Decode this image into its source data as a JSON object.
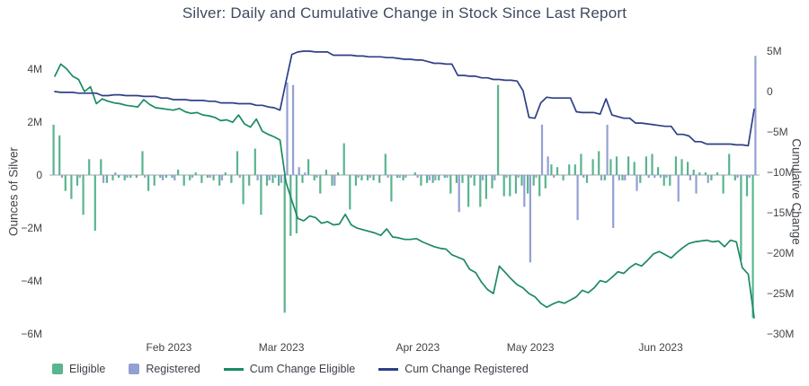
{
  "title": "Silver: Daily and Cumulative Change in Stock Since Last Report",
  "colors": {
    "eligible_bar": "#5ab48e",
    "registered_bar": "#93a0d2",
    "cum_eligible_line": "#1b8a63",
    "cum_registered_line": "#2e4085",
    "title_text": "#3e4a5e",
    "axis_text": "#444444",
    "zero_line": "#b3b9c2"
  },
  "axes": {
    "left": {
      "title": "Ounces of Silver",
      "ticks": [
        "4M",
        "2M",
        "0",
        "−2M",
        "−4M",
        "−6M"
      ],
      "tick_values": [
        4,
        2,
        0,
        -2,
        -4,
        -6
      ]
    },
    "right": {
      "title": "Cumulative Change",
      "ticks": [
        "5M",
        "0",
        "−5M",
        "−10M",
        "−15M",
        "−20M",
        "−25M",
        "−30M"
      ],
      "tick_values": [
        5,
        0,
        -5,
        -10,
        -15,
        -20,
        -25,
        -30
      ]
    },
    "x": {
      "ticks": [
        {
          "label": "Feb 2023",
          "month": "2023-02"
        },
        {
          "label": "Mar 2023",
          "month": "2023-03"
        },
        {
          "label": "Apr 2023",
          "month": "2023-04"
        },
        {
          "label": "May 2023",
          "month": "2023-05"
        },
        {
          "label": "Jun 2023",
          "month": "2023-06"
        }
      ]
    }
  },
  "legend": {
    "items": [
      {
        "label": "Eligible",
        "swatch": "bar",
        "color_key": "eligible_bar"
      },
      {
        "label": "Registered",
        "swatch": "bar",
        "color_key": "registered_bar"
      },
      {
        "label": "Cum Change Eligible",
        "swatch": "line",
        "color_key": "cum_eligible_line"
      },
      {
        "label": "Cum Change Registered",
        "swatch": "line",
        "color_key": "cum_registered_line"
      }
    ]
  },
  "chart_data": {
    "type": "bar+line",
    "title": "Silver: Daily and Cumulative Change in Stock Since Last Report",
    "units": "millions of troy ounces",
    "grid": false,
    "legend_position": "bottom-left",
    "ylim_left": [
      -6.3,
      4.9
    ],
    "ylim_right": [
      -30.6,
      5.9
    ],
    "x": [
      "2023-01-03",
      "2023-01-04",
      "2023-01-05",
      "2023-01-06",
      "2023-01-09",
      "2023-01-10",
      "2023-01-11",
      "2023-01-12",
      "2023-01-13",
      "2023-01-17",
      "2023-01-18",
      "2023-01-19",
      "2023-01-20",
      "2023-01-23",
      "2023-01-24",
      "2023-01-25",
      "2023-01-26",
      "2023-01-27",
      "2023-01-30",
      "2023-01-31",
      "2023-02-01",
      "2023-02-02",
      "2023-02-03",
      "2023-02-06",
      "2023-02-07",
      "2023-02-08",
      "2023-02-09",
      "2023-02-10",
      "2023-02-13",
      "2023-02-14",
      "2023-02-15",
      "2023-02-16",
      "2023-02-17",
      "2023-02-21",
      "2023-02-22",
      "2023-02-23",
      "2023-02-24",
      "2023-02-27",
      "2023-02-28",
      "2023-03-01",
      "2023-03-02",
      "2023-03-03",
      "2023-03-06",
      "2023-03-07",
      "2023-03-08",
      "2023-03-09",
      "2023-03-10",
      "2023-03-13",
      "2023-03-14",
      "2023-03-15",
      "2023-03-16",
      "2023-03-17",
      "2023-03-20",
      "2023-03-21",
      "2023-03-22",
      "2023-03-23",
      "2023-03-24",
      "2023-03-27",
      "2023-03-28",
      "2023-03-29",
      "2023-03-30",
      "2023-03-31",
      "2023-04-03",
      "2023-04-04",
      "2023-04-05",
      "2023-04-06",
      "2023-04-10",
      "2023-04-11",
      "2023-04-12",
      "2023-04-13",
      "2023-04-14",
      "2023-04-17",
      "2023-04-18",
      "2023-04-19",
      "2023-04-20",
      "2023-04-21",
      "2023-04-24",
      "2023-04-25",
      "2023-04-26",
      "2023-04-27",
      "2023-04-28",
      "2023-05-01",
      "2023-05-02",
      "2023-05-03",
      "2023-05-04",
      "2023-05-05",
      "2023-05-08",
      "2023-05-09",
      "2023-05-10",
      "2023-05-11",
      "2023-05-12",
      "2023-05-15",
      "2023-05-16",
      "2023-05-17",
      "2023-05-18",
      "2023-05-19",
      "2023-05-22",
      "2023-05-23",
      "2023-05-24",
      "2023-05-25",
      "2023-05-26",
      "2023-05-30",
      "2023-05-31",
      "2023-06-01",
      "2023-06-02",
      "2023-06-05",
      "2023-06-06",
      "2023-06-07",
      "2023-06-08",
      "2023-06-09",
      "2023-06-12",
      "2023-06-13",
      "2023-06-14",
      "2023-06-15",
      "2023-06-16",
      "2023-06-20",
      "2023-06-21",
      "2023-06-22",
      "2023-06-23"
    ],
    "series": [
      {
        "name": "Eligible",
        "type": "bar",
        "yaxis": "left",
        "color_key": "eligible_bar",
        "values": [
          1.9,
          1.5,
          -0.6,
          -0.9,
          -0.4,
          -1.5,
          0.6,
          -2.1,
          0.6,
          -0.3,
          -0.2,
          -0.1,
          -0.2,
          -0.1,
          -0.1,
          0.9,
          -0.6,
          -0.4,
          -0.1,
          -0.1,
          -0.1,
          0.2,
          -0.4,
          -0.2,
          0.1,
          -0.3,
          -0.1,
          -0.2,
          -0.4,
          0.1,
          -0.3,
          0.9,
          -1.1,
          -0.4,
          1.0,
          -1.5,
          -0.4,
          -0.3,
          -0.4,
          -5.2,
          -2.3,
          -2.2,
          -0.3,
          0.6,
          -0.2,
          -0.7,
          0.2,
          -0.4,
          0.1,
          1.2,
          -1.3,
          -0.4,
          -0.2,
          -0.2,
          -0.2,
          -0.3,
          0.8,
          -1.0,
          -0.1,
          -0.2,
          0.0,
          0.1,
          -0.4,
          -0.3,
          -0.3,
          -0.2,
          -0.1,
          -0.7,
          -0.3,
          -0.3,
          -1.2,
          -0.4,
          -1.2,
          -0.9,
          -0.5,
          3.4,
          -0.8,
          -0.8,
          -0.7,
          -0.4,
          -0.7,
          -0.4,
          -0.8,
          -0.5,
          0.4,
          0.3,
          -0.2,
          0.4,
          0.4,
          0.8,
          -0.3,
          0.6,
          0.9,
          -0.2,
          0.6,
          0.7,
          -0.2,
          0.7,
          0.5,
          -0.3,
          0.7,
          0.8,
          0.3,
          -0.4,
          -0.4,
          0.7,
          0.6,
          0.5,
          0.2,
          0.1,
          0.1,
          -0.2,
          0.1,
          -0.7,
          0.8,
          -0.2,
          -3.2,
          -0.8,
          -5.4
        ]
      },
      {
        "name": "Registered",
        "type": "bar",
        "yaxis": "left",
        "color_key": "registered_bar",
        "values": [
          0.0,
          -0.1,
          0.0,
          0.0,
          -0.1,
          0.0,
          0.0,
          0.0,
          -0.3,
          0.0,
          0.1,
          0.0,
          -0.1,
          0.0,
          0.0,
          -0.1,
          0.0,
          0.0,
          -0.2,
          0.0,
          -0.2,
          0.0,
          0.0,
          -0.1,
          0.0,
          0.0,
          -0.1,
          0.0,
          -0.2,
          0.0,
          0.0,
          -0.1,
          0.0,
          0.0,
          -0.2,
          0.0,
          -0.2,
          -0.1,
          -0.3,
          3.5,
          3.4,
          0.3,
          0.1,
          0.0,
          -0.1,
          0.0,
          0.0,
          -0.4,
          0.0,
          0.0,
          0.0,
          -0.1,
          0.0,
          -0.1,
          0.0,
          0.0,
          -0.1,
          0.0,
          -0.1,
          -0.1,
          0.0,
          -0.1,
          0.0,
          -0.2,
          -0.2,
          0.0,
          -0.1,
          0.0,
          -1.4,
          0.0,
          -0.1,
          0.0,
          -0.2,
          0.0,
          -0.2,
          0.0,
          -0.1,
          0.0,
          -0.1,
          -1.2,
          -3.3,
          -0.1,
          1.9,
          0.7,
          -0.1,
          0.0,
          0.0,
          0.0,
          -1.7,
          -0.1,
          0.0,
          0.0,
          -0.2,
          1.9,
          -2.0,
          -0.2,
          -0.2,
          0.0,
          -0.6,
          0.0,
          -0.1,
          -0.1,
          -0.1,
          -0.1,
          0.0,
          -1.0,
          0.0,
          -0.2,
          -0.7,
          0.0,
          -0.3,
          0.0,
          0.0,
          0.0,
          0.0,
          -0.1,
          0.0,
          -0.1,
          4.5
        ]
      },
      {
        "name": "Cum Change Eligible",
        "type": "line",
        "yaxis": "right",
        "color_key": "cum_eligible_line",
        "values": [
          1.9,
          3.4,
          2.8,
          1.9,
          1.5,
          0.0,
          0.6,
          -1.5,
          -0.9,
          -1.2,
          -1.4,
          -1.5,
          -1.7,
          -1.8,
          -1.9,
          -1.0,
          -1.6,
          -2.0,
          -2.1,
          -2.2,
          -2.3,
          -2.1,
          -2.5,
          -2.7,
          -2.6,
          -2.9,
          -3.0,
          -3.2,
          -3.6,
          -3.5,
          -3.8,
          -2.9,
          -4.0,
          -4.4,
          -3.4,
          -4.9,
          -5.3,
          -5.6,
          -6.0,
          -11.2,
          -13.5,
          -15.7,
          -16.0,
          -15.4,
          -15.6,
          -16.3,
          -16.1,
          -16.5,
          -16.4,
          -15.2,
          -16.5,
          -16.9,
          -17.1,
          -17.3,
          -17.5,
          -17.8,
          -17.0,
          -18.0,
          -18.1,
          -18.3,
          -18.3,
          -18.2,
          -18.6,
          -18.9,
          -19.2,
          -19.4,
          -19.5,
          -20.2,
          -20.5,
          -20.8,
          -22.0,
          -22.4,
          -23.6,
          -24.5,
          -25.0,
          -21.6,
          -22.4,
          -23.2,
          -23.9,
          -24.3,
          -25.0,
          -25.4,
          -26.2,
          -26.7,
          -26.3,
          -26.0,
          -26.2,
          -25.8,
          -25.4,
          -24.6,
          -24.9,
          -24.3,
          -23.4,
          -23.6,
          -23.0,
          -22.3,
          -22.5,
          -21.8,
          -21.3,
          -21.6,
          -20.9,
          -20.1,
          -19.8,
          -20.2,
          -20.6,
          -19.9,
          -19.3,
          -18.8,
          -18.6,
          -18.5,
          -18.4,
          -18.6,
          -18.5,
          -19.2,
          -18.4,
          -18.6,
          -21.8,
          -22.6,
          -28.0
        ]
      },
      {
        "name": "Cum Change Registered",
        "type": "line",
        "yaxis": "right",
        "color_key": "cum_registered_line",
        "values": [
          0.0,
          -0.1,
          -0.1,
          -0.1,
          -0.2,
          -0.2,
          -0.2,
          -0.2,
          -0.5,
          -0.5,
          -0.4,
          -0.4,
          -0.5,
          -0.5,
          -0.5,
          -0.6,
          -0.6,
          -0.6,
          -0.8,
          -0.8,
          -1.0,
          -1.0,
          -1.0,
          -1.1,
          -1.1,
          -1.1,
          -1.2,
          -1.2,
          -1.4,
          -1.4,
          -1.4,
          -1.5,
          -1.5,
          -1.5,
          -1.7,
          -1.7,
          -1.9,
          -2.0,
          -2.3,
          1.2,
          4.6,
          4.9,
          5.0,
          5.0,
          4.9,
          4.9,
          4.9,
          4.5,
          4.5,
          4.5,
          4.5,
          4.4,
          4.4,
          4.3,
          4.3,
          4.3,
          4.2,
          4.2,
          4.1,
          4.0,
          4.0,
          3.9,
          3.9,
          3.7,
          3.5,
          3.5,
          3.4,
          3.4,
          2.0,
          2.0,
          1.9,
          1.9,
          1.7,
          1.7,
          1.5,
          1.5,
          1.4,
          1.4,
          1.3,
          0.1,
          -3.2,
          -3.3,
          -1.4,
          -0.7,
          -0.8,
          -0.8,
          -0.8,
          -0.8,
          -2.5,
          -2.6,
          -2.6,
          -2.6,
          -2.8,
          -0.9,
          -2.9,
          -3.1,
          -3.3,
          -3.3,
          -3.9,
          -3.9,
          -4.0,
          -4.1,
          -4.2,
          -4.3,
          -4.3,
          -5.3,
          -5.3,
          -5.5,
          -6.2,
          -6.2,
          -6.5,
          -6.5,
          -6.5,
          -6.5,
          -6.5,
          -6.6,
          -6.6,
          -6.7,
          -2.2
        ]
      }
    ]
  }
}
